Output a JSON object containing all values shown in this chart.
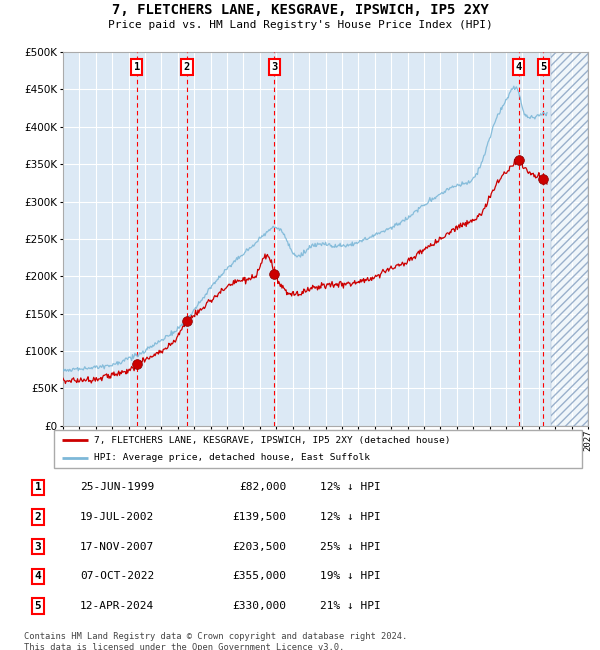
{
  "title": "7, FLETCHERS LANE, KESGRAVE, IPSWICH, IP5 2XY",
  "subtitle": "Price paid vs. HM Land Registry's House Price Index (HPI)",
  "legend_line1": "7, FLETCHERS LANE, KESGRAVE, IPSWICH, IP5 2XY (detached house)",
  "legend_line2": "HPI: Average price, detached house, East Suffolk",
  "footer1": "Contains HM Land Registry data © Crown copyright and database right 2024.",
  "footer2": "This data is licensed under the Open Government Licence v3.0.",
  "transactions": [
    {
      "num": 1,
      "date": "25-JUN-1999",
      "price": "£82,000",
      "pct": "12% ↓ HPI",
      "year": 1999.49
    },
    {
      "num": 2,
      "date": "19-JUL-2002",
      "price": "£139,500",
      "pct": "12% ↓ HPI",
      "year": 2002.55
    },
    {
      "num": 3,
      "date": "17-NOV-2007",
      "price": "£203,500",
      "pct": "25% ↓ HPI",
      "year": 2007.88
    },
    {
      "num": 4,
      "date": "07-OCT-2022",
      "price": "£355,000",
      "pct": "19% ↓ HPI",
      "year": 2022.77
    },
    {
      "num": 5,
      "date": "12-APR-2024",
      "price": "£330,000",
      "pct": "21% ↓ HPI",
      "year": 2024.28
    }
  ],
  "transaction_prices": [
    82000,
    139500,
    203500,
    355000,
    330000
  ],
  "ylim": [
    0,
    500000
  ],
  "xlim_left": 1995.0,
  "xlim_right": 2027.0,
  "chart_bg": "#dce9f5",
  "hatch_start": 2024.75,
  "grid_color": "#ffffff",
  "line_red": "#cc0000",
  "line_blue": "#7db8d8"
}
